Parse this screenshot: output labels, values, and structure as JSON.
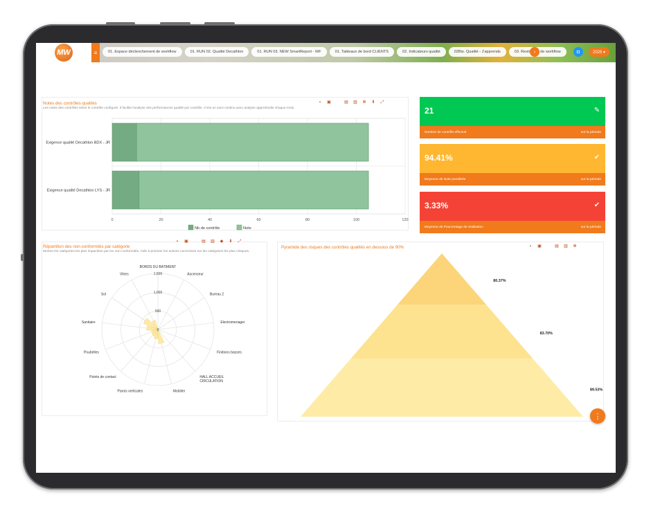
{
  "logo_text": "MW",
  "nav": {
    "tabs": [
      "01. Espace déclenchement de workflow",
      "01. RUN 02. Qualité Decathlon",
      "01. RUN 03. NEW SmartReport - WF",
      "01. Tableaux de bord CLIENTS",
      "02. Indicateurs qualité",
      "02Bis. Qualité - J'apprends",
      "03. Restitution de workflow"
    ],
    "year": "2025 ▾"
  },
  "notes_panel": {
    "title": "Notes des contrôles qualités",
    "subtitle": "Les notes des contrôles selon le contrôle configuré. Il facilite l'analyse des performances qualité par contrôle. C'est un suivi continu avec analyse approfondie chaque mois."
  },
  "radar_panel": {
    "title": "Répartition des non-conformités par catégorie",
    "subtitle": "Montre les catégories les plus impactées par les non-conformités. Aide à prioriser les actions correctives sur les catégories les plus critiques."
  },
  "pyramid_panel": {
    "title": "Pyramide des risques des contrôles qualités en dessous de 90%"
  },
  "kpis": [
    {
      "value": "21",
      "label": "Nombre de contrôle effectué",
      "period": "sur la période",
      "color": "#00c853",
      "icon": "clipboard-check-icon"
    },
    {
      "value": "94.41%",
      "label": "Moyenne de Note pondérée",
      "period": "sur la période",
      "color": "#ffb630",
      "icon": "check-circle-icon"
    },
    {
      "value": "3.33%",
      "label": "Moyenne de Pourcentage de réalisation",
      "period": "sur la période",
      "color": "#f44336",
      "icon": "double-check-icon"
    }
  ],
  "chart_data": [
    {
      "type": "bar",
      "orientation": "horizontal",
      "stacked": true,
      "categories": [
        "Exigence qualité Decathlon BDX - JR",
        "Exigence qualité Decathlon LYS - JR"
      ],
      "series": [
        {
          "name": "Nb de contrôle",
          "values": [
            10,
            11
          ],
          "color": "#74ab82"
        },
        {
          "name": "Note",
          "values": [
            95,
            94
          ],
          "color": "#8fc49c"
        }
      ],
      "xlim": [
        0,
        120
      ],
      "xticks": [
        "0",
        "20",
        "40",
        "60",
        "80",
        "100",
        "120"
      ],
      "legend": "bottom"
    },
    {
      "type": "radar",
      "categories": [
        "BORDS DU BATIMENT",
        "Ascenseur",
        "Bureau 2",
        "Electromenager",
        "Finitions basses",
        "HALL ACCUEIL CIRCULATION",
        "Mobilier",
        "Parois verticales",
        "Points de contact",
        "Poubelles",
        "Sanitaire",
        "Sol",
        "Vitres"
      ],
      "values": [
        0,
        0,
        0,
        0,
        0,
        0,
        380,
        250,
        200,
        180,
        300,
        420,
        260
      ],
      "rticks": [
        "0",
        "500",
        "1,000",
        "1,500"
      ],
      "rmax": 1500,
      "color": "#fde9a8"
    },
    {
      "type": "pyramid",
      "levels": [
        {
          "label": "80.37%",
          "value": 80.37,
          "color": "#fcd57a"
        },
        {
          "label": "83.70%",
          "value": 83.7,
          "color": "#fde390"
        },
        {
          "label": "89.53%",
          "value": 89.53,
          "color": "#feeba6"
        }
      ]
    }
  ]
}
